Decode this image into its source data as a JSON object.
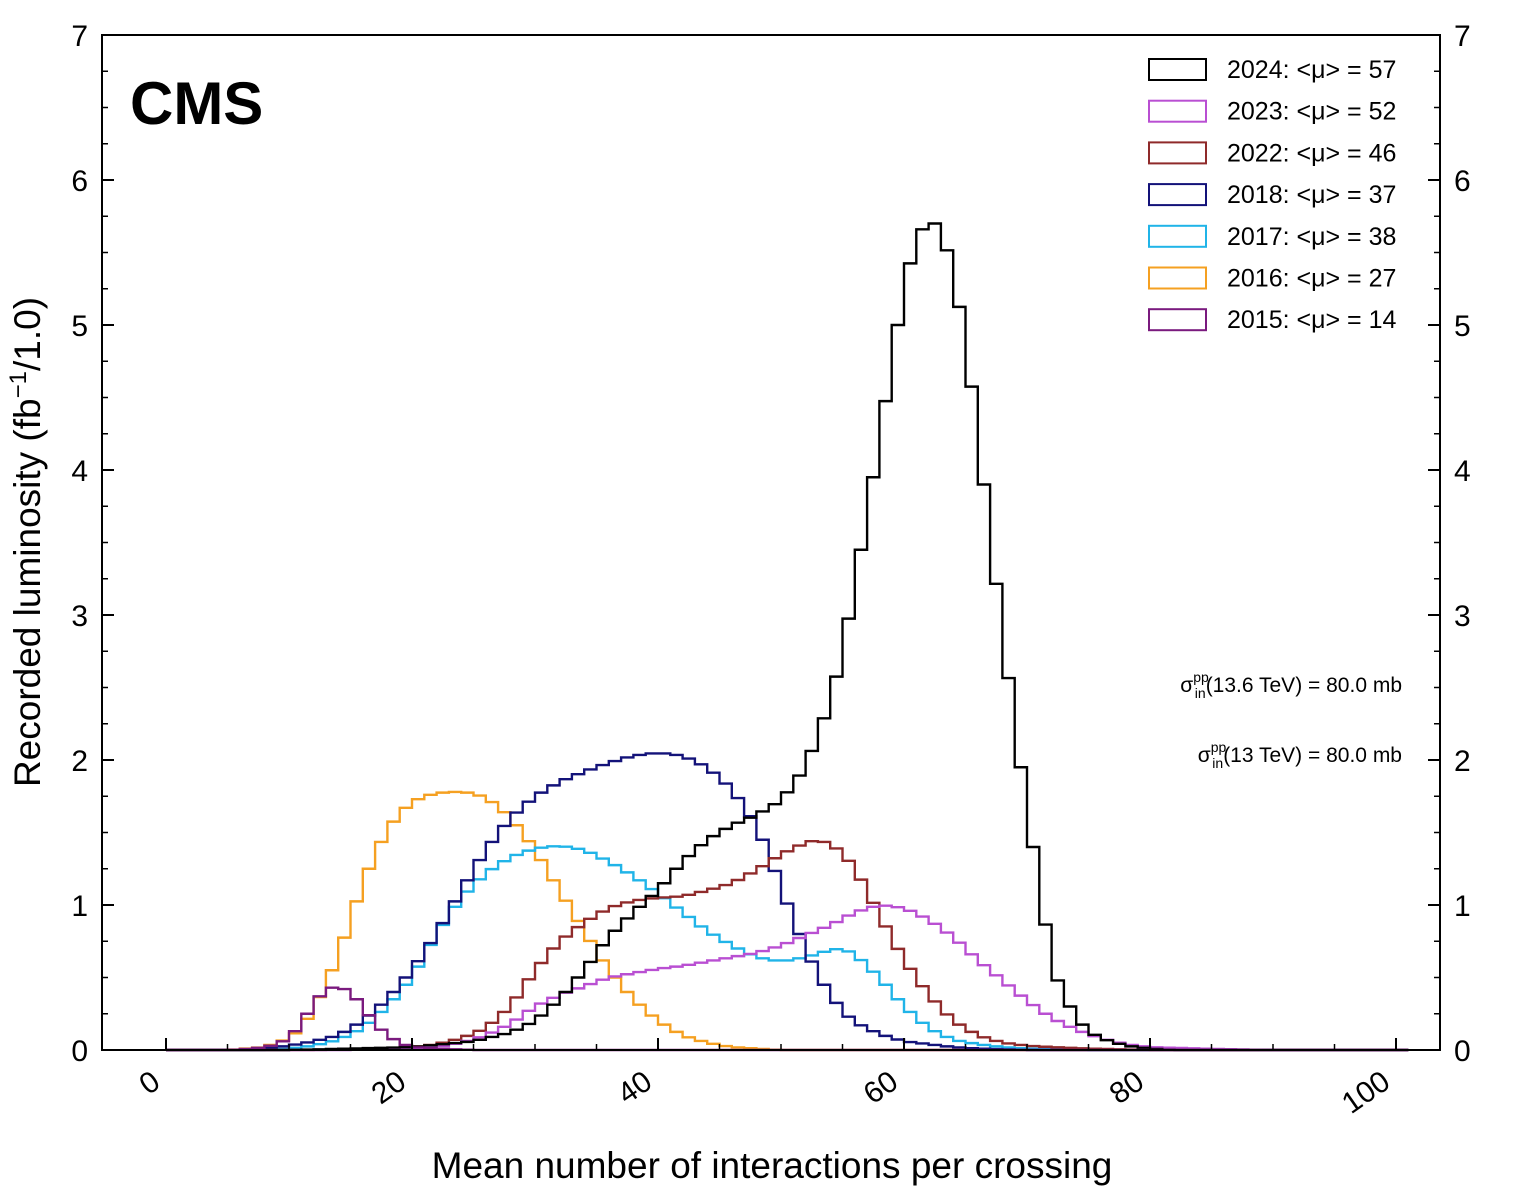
{
  "chart_data": {
    "type": "step",
    "experiment_label": "CMS",
    "xlabel": "Mean number of interactions per crossing",
    "ylabel": "Recorded luminosity (fb",
    "ylabel_sup": "−1",
    "ylabel_tail": "/1.0)",
    "xlim": [
      -2.5,
      104
    ],
    "ylim": [
      0,
      7
    ],
    "xticks": [
      0,
      20,
      40,
      60,
      80,
      100
    ],
    "yticks": [
      0,
      1,
      2,
      3,
      4,
      5,
      6,
      7
    ],
    "xtick_labels": [
      "0",
      "20",
      "40",
      "60",
      "80",
      "100"
    ],
    "ytick_labels": [
      "0",
      "1",
      "2",
      "3",
      "4",
      "5",
      "6",
      "7"
    ],
    "legend_position": "top-right",
    "annotations": [
      {
        "sigma": "σ",
        "sup": "pp",
        "sub": "in",
        "text": "(13.6 TeV) = 80.0 mb"
      },
      {
        "sigma": "σ",
        "sup": "pp",
        "sub": "in",
        "text": "(13 TeV) = 80.0 mb"
      }
    ],
    "bin_width": 1,
    "series": [
      {
        "name": "2024: <μ> = 57",
        "color": "#000000",
        "x": [
          10,
          15,
          20,
          25,
          28,
          30,
          32,
          34,
          36,
          38,
          40,
          42,
          44,
          46,
          48,
          50,
          52,
          54,
          55,
          56,
          57,
          58,
          59,
          60,
          61,
          62,
          63,
          64,
          65,
          66,
          67,
          68,
          69,
          70,
          71,
          72,
          73,
          74,
          75,
          76,
          78,
          80,
          82
        ],
        "y": [
          0.0,
          0.01,
          0.02,
          0.06,
          0.12,
          0.2,
          0.35,
          0.55,
          0.78,
          0.95,
          1.1,
          1.3,
          1.45,
          1.55,
          1.62,
          1.72,
          1.95,
          2.4,
          2.75,
          3.2,
          3.7,
          4.2,
          4.75,
          5.25,
          5.6,
          5.72,
          5.68,
          5.35,
          4.9,
          4.25,
          3.55,
          2.88,
          2.25,
          1.65,
          1.15,
          0.58,
          0.38,
          0.22,
          0.13,
          0.08,
          0.03,
          0.01,
          0.0
        ]
      },
      {
        "name": "2023: <μ> = 52",
        "color": "#b94fd2",
        "x": [
          15,
          20,
          22,
          24,
          26,
          28,
          30,
          32,
          34,
          36,
          38,
          40,
          42,
          44,
          46,
          48,
          50,
          52,
          54,
          56,
          58,
          60,
          62,
          64,
          66,
          68,
          70,
          72,
          74,
          76,
          78,
          80,
          84,
          90
        ],
        "y": [
          0.0,
          0.01,
          0.02,
          0.05,
          0.1,
          0.18,
          0.3,
          0.38,
          0.44,
          0.5,
          0.53,
          0.56,
          0.58,
          0.61,
          0.64,
          0.67,
          0.72,
          0.79,
          0.86,
          0.95,
          1.0,
          0.98,
          0.9,
          0.78,
          0.62,
          0.48,
          0.34,
          0.22,
          0.14,
          0.08,
          0.04,
          0.02,
          0.01,
          0.0
        ]
      },
      {
        "name": "2022: <μ> = 46",
        "color": "#8f2a2a",
        "x": [
          12,
          15,
          18,
          20,
          22,
          24,
          26,
          28,
          30,
          32,
          34,
          36,
          38,
          40,
          42,
          44,
          46,
          48,
          50,
          52,
          53,
          54,
          55,
          56,
          57,
          58,
          60,
          62,
          64,
          66,
          68,
          70,
          72,
          75,
          80
        ],
        "y": [
          0.0,
          0.005,
          0.01,
          0.02,
          0.04,
          0.08,
          0.15,
          0.3,
          0.55,
          0.75,
          0.88,
          0.98,
          1.03,
          1.05,
          1.06,
          1.1,
          1.15,
          1.24,
          1.35,
          1.43,
          1.45,
          1.42,
          1.36,
          1.25,
          1.1,
          0.93,
          0.62,
          0.38,
          0.2,
          0.1,
          0.05,
          0.03,
          0.02,
          0.01,
          0.0
        ]
      },
      {
        "name": "2018: <μ> = 37",
        "color": "#131279",
        "x": [
          5,
          8,
          10,
          12,
          14,
          16,
          18,
          20,
          22,
          24,
          26,
          28,
          30,
          32,
          34,
          36,
          38,
          40,
          42,
          44,
          46,
          48,
          49,
          50,
          51,
          52,
          53,
          54,
          55,
          56,
          58,
          60,
          62,
          64,
          66,
          68,
          70,
          72,
          75
        ],
        "y": [
          0.0,
          0.01,
          0.03,
          0.06,
          0.1,
          0.2,
          0.35,
          0.55,
          0.8,
          1.1,
          1.38,
          1.6,
          1.75,
          1.85,
          1.92,
          1.98,
          2.03,
          2.05,
          2.03,
          1.95,
          1.8,
          1.55,
          1.35,
          1.12,
          0.9,
          0.7,
          0.52,
          0.38,
          0.27,
          0.19,
          0.11,
          0.06,
          0.04,
          0.02,
          0.01,
          0.005,
          0.0,
          0.0,
          0.0
        ]
      },
      {
        "name": "2017: <μ> = 38",
        "color": "#20b4e8",
        "x": [
          8,
          10,
          12,
          14,
          16,
          18,
          20,
          22,
          24,
          26,
          28,
          30,
          32,
          34,
          36,
          38,
          40,
          42,
          44,
          46,
          48,
          50,
          52,
          54,
          55,
          56,
          58,
          60,
          62,
          64,
          66,
          68,
          70,
          75
        ],
        "y": [
          0.0,
          0.01,
          0.03,
          0.07,
          0.15,
          0.3,
          0.5,
          0.8,
          1.05,
          1.22,
          1.33,
          1.39,
          1.41,
          1.38,
          1.3,
          1.2,
          1.08,
          0.95,
          0.82,
          0.72,
          0.64,
          0.61,
          0.64,
          0.69,
          0.7,
          0.66,
          0.5,
          0.3,
          0.15,
          0.07,
          0.04,
          0.02,
          0.01,
          0.0
        ]
      },
      {
        "name": "2016: <μ> = 27",
        "color": "#f5a021",
        "x": [
          5,
          8,
          10,
          11,
          12,
          13,
          14,
          15,
          16,
          17,
          18,
          19,
          20,
          21,
          22,
          23,
          24,
          25,
          26,
          27,
          28,
          29,
          30,
          32,
          34,
          36,
          38,
          40,
          42,
          44,
          46,
          48,
          50,
          52,
          55
        ],
        "y": [
          0.0,
          0.02,
          0.08,
          0.15,
          0.28,
          0.45,
          0.65,
          0.9,
          1.15,
          1.35,
          1.52,
          1.63,
          1.71,
          1.75,
          1.77,
          1.78,
          1.78,
          1.77,
          1.74,
          1.68,
          1.6,
          1.5,
          1.38,
          1.1,
          0.82,
          0.55,
          0.35,
          0.2,
          0.1,
          0.05,
          0.02,
          0.01,
          0.0,
          0.0,
          0.0
        ]
      },
      {
        "name": "2015: <μ> = 14",
        "color": "#7a1a7e",
        "x": [
          5,
          7,
          8,
          9,
          10,
          11,
          12,
          13,
          14,
          15,
          16,
          17,
          18,
          19,
          20,
          22,
          25
        ],
        "y": [
          0.0,
          0.01,
          0.02,
          0.04,
          0.08,
          0.18,
          0.32,
          0.42,
          0.44,
          0.4,
          0.3,
          0.18,
          0.1,
          0.05,
          0.02,
          0.01,
          0.0
        ]
      }
    ]
  }
}
